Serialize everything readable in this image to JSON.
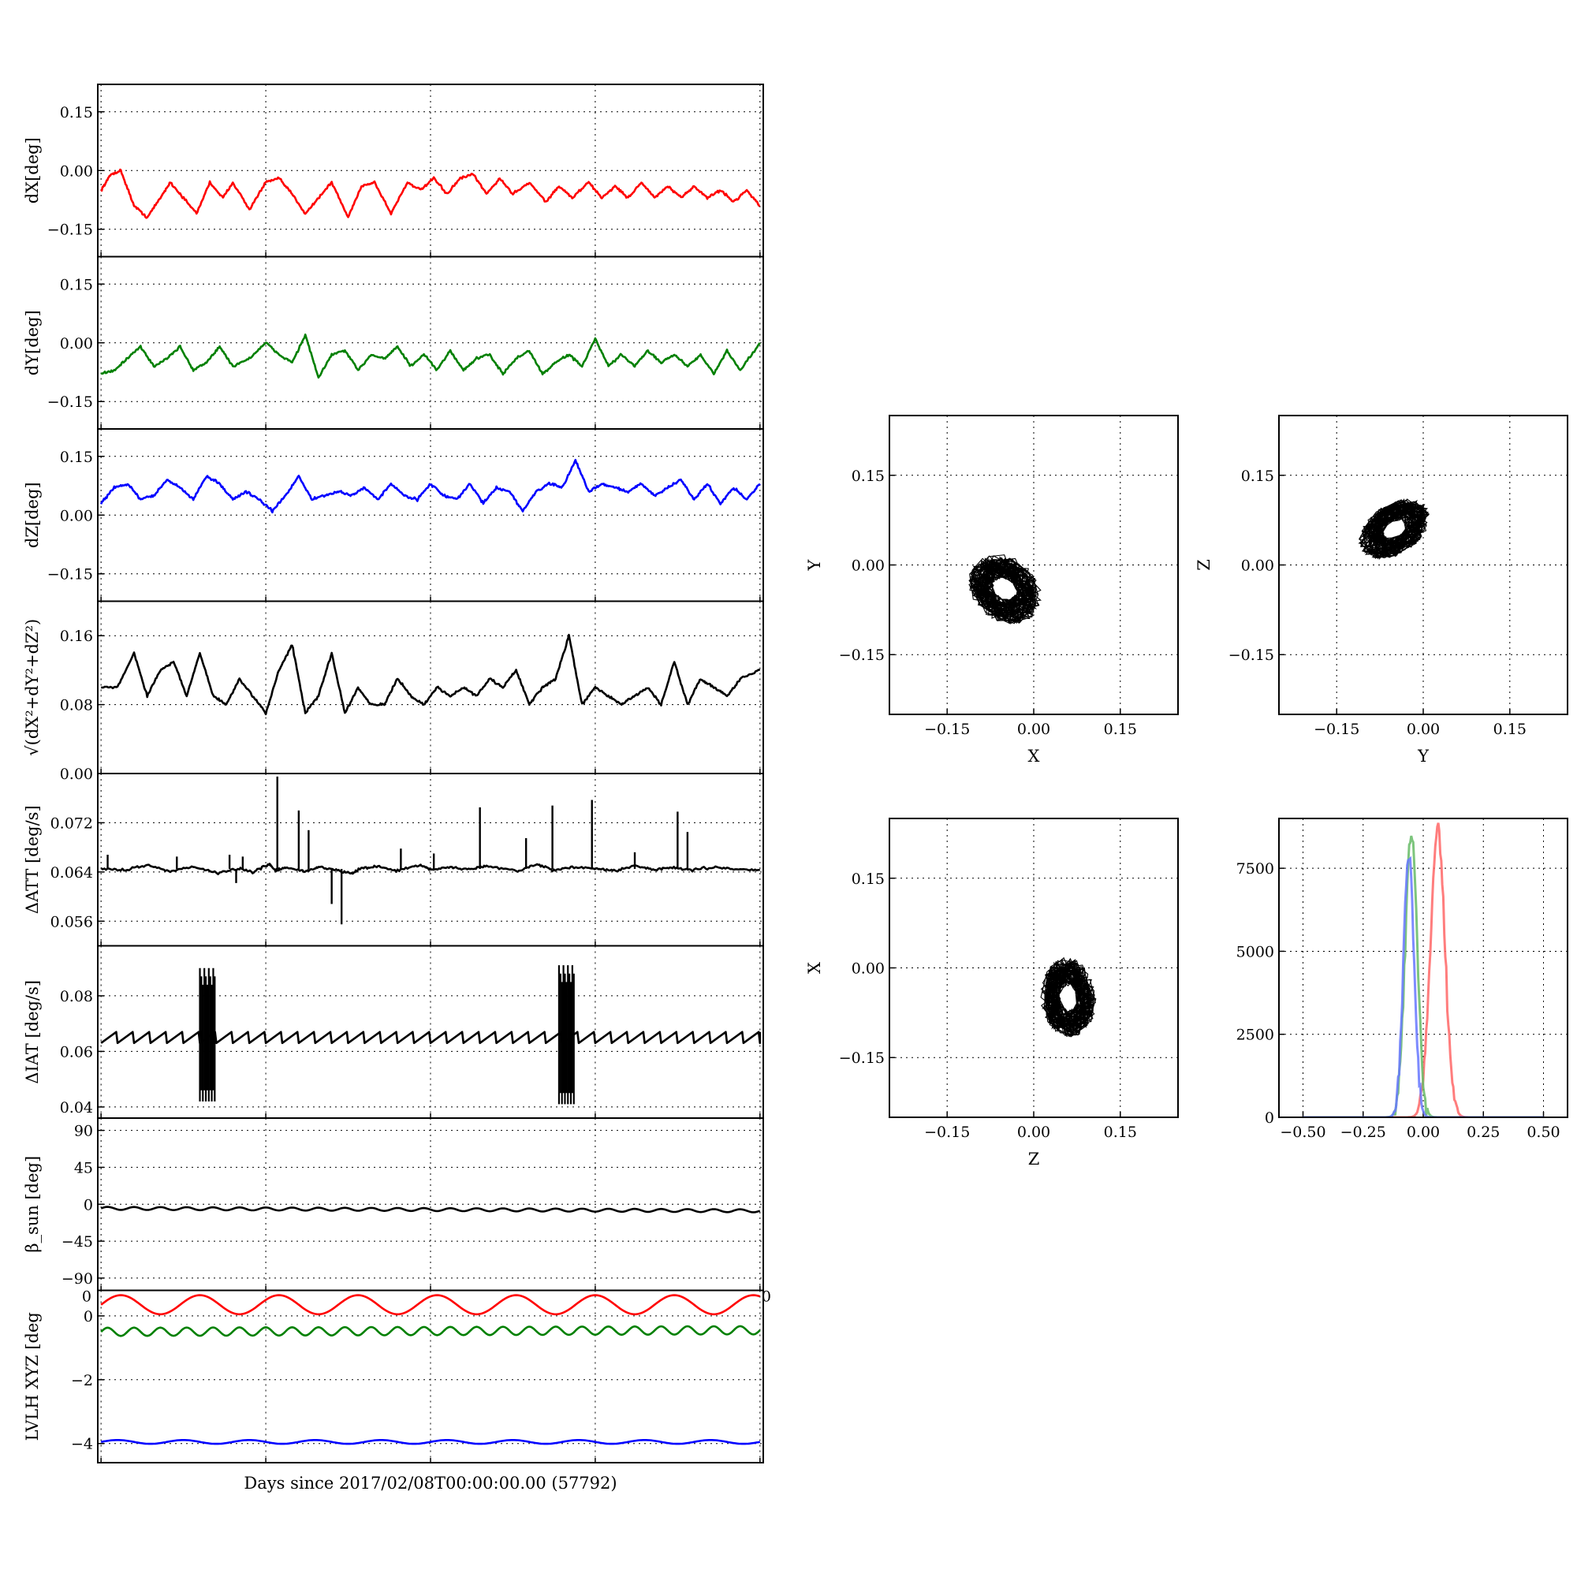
{
  "figure": {
    "xlabel": "Days since 2017/02/08T00:00:00.00 (57792)"
  },
  "chart_data": [
    {
      "type": "line",
      "ylabel": "dX[deg]",
      "yticks": [
        0.15,
        0.0,
        -0.15
      ],
      "ytick_labels": [
        "0.15",
        "0.00",
        "−0.15"
      ],
      "ylim": [
        -0.22,
        0.22
      ],
      "grid": true,
      "series": [
        {
          "color": "#ff0000",
          "x": [
            0,
            0.3,
            0.6,
            1.0,
            1.4,
            1.8,
            2.1,
            2.4,
            2.9,
            3.3,
            3.7,
            4.0,
            4.5,
            5.0,
            5.4,
            5.8,
            6.2,
            6.6,
            7.0,
            7.5,
            7.9,
            8.3,
            8.8,
            9.3,
            9.7,
            10.1,
            10.5,
            10.9,
            11.3,
            11.7,
            12.1,
            12.5,
            13.0,
            13.5,
            13.9,
            14.3,
            14.8,
            15.2,
            15.6,
            16.0,
            16.4,
            16.8,
            17.2,
            17.6,
            18.0,
            18.4,
            18.8,
            19.2,
            19.6,
            20.0
          ],
          "values": [
            -0.05,
            -0.01,
            0.0,
            -0.09,
            -0.12,
            -0.07,
            -0.03,
            -0.06,
            -0.11,
            -0.03,
            -0.07,
            -0.03,
            -0.1,
            -0.03,
            -0.02,
            -0.06,
            -0.11,
            -0.07,
            -0.03,
            -0.12,
            -0.04,
            -0.03,
            -0.11,
            -0.03,
            -0.05,
            -0.02,
            -0.06,
            -0.02,
            -0.01,
            -0.06,
            -0.02,
            -0.06,
            -0.03,
            -0.08,
            -0.04,
            -0.07,
            -0.03,
            -0.07,
            -0.04,
            -0.07,
            -0.03,
            -0.07,
            -0.04,
            -0.07,
            -0.04,
            -0.07,
            -0.05,
            -0.08,
            -0.05,
            -0.09
          ]
        }
      ]
    },
    {
      "type": "line",
      "ylabel": "dY[deg]",
      "yticks": [
        0.15,
        0.0,
        -0.15
      ],
      "ytick_labels": [
        "0.15",
        "0.00",
        "−0.15"
      ],
      "ylim": [
        -0.22,
        0.22
      ],
      "grid": true,
      "series": [
        {
          "color": "#008000",
          "x": [
            0,
            0.4,
            0.8,
            1.2,
            1.6,
            2.0,
            2.4,
            2.8,
            3.2,
            3.6,
            4.0,
            4.5,
            5.0,
            5.4,
            5.8,
            6.2,
            6.6,
            7.0,
            7.4,
            7.8,
            8.2,
            8.6,
            9.0,
            9.4,
            9.8,
            10.2,
            10.6,
            11.0,
            11.4,
            11.8,
            12.2,
            12.6,
            13.0,
            13.4,
            13.8,
            14.2,
            14.6,
            15.0,
            15.4,
            15.8,
            16.2,
            16.6,
            17.0,
            17.4,
            17.8,
            18.2,
            18.6,
            19.0,
            19.4,
            20.0
          ],
          "values": [
            -0.08,
            -0.07,
            -0.04,
            -0.01,
            -0.06,
            -0.04,
            -0.01,
            -0.07,
            -0.05,
            -0.01,
            -0.06,
            -0.04,
            0.0,
            -0.03,
            -0.05,
            0.02,
            -0.09,
            -0.03,
            -0.02,
            -0.07,
            -0.03,
            -0.04,
            -0.01,
            -0.06,
            -0.03,
            -0.07,
            -0.02,
            -0.07,
            -0.04,
            -0.03,
            -0.08,
            -0.04,
            -0.02,
            -0.08,
            -0.05,
            -0.03,
            -0.06,
            0.01,
            -0.06,
            -0.03,
            -0.06,
            -0.02,
            -0.05,
            -0.03,
            -0.06,
            -0.03,
            -0.08,
            -0.02,
            -0.07,
            0.0
          ]
        }
      ]
    },
    {
      "type": "line",
      "ylabel": "dZ[deg]",
      "yticks": [
        0.15,
        0.0,
        -0.15
      ],
      "ytick_labels": [
        "0.15",
        "0.00",
        "−0.15"
      ],
      "ylim": [
        -0.22,
        0.22
      ],
      "grid": true,
      "series": [
        {
          "color": "#0000ff",
          "x": [
            0,
            0.4,
            0.8,
            1.2,
            1.6,
            2.0,
            2.4,
            2.8,
            3.2,
            3.6,
            4.0,
            4.4,
            4.8,
            5.2,
            5.6,
            6.0,
            6.4,
            6.8,
            7.2,
            7.6,
            8.0,
            8.4,
            8.8,
            9.2,
            9.6,
            10.0,
            10.4,
            10.8,
            11.2,
            11.6,
            12.0,
            12.4,
            12.8,
            13.2,
            13.6,
            14.0,
            14.4,
            14.8,
            15.2,
            15.6,
            16.0,
            16.4,
            16.8,
            17.2,
            17.6,
            18.0,
            18.4,
            18.8,
            19.2,
            19.6,
            20.0
          ],
          "values": [
            0.03,
            0.07,
            0.08,
            0.04,
            0.05,
            0.09,
            0.07,
            0.04,
            0.1,
            0.08,
            0.04,
            0.06,
            0.04,
            0.01,
            0.05,
            0.1,
            0.04,
            0.05,
            0.06,
            0.05,
            0.07,
            0.04,
            0.08,
            0.05,
            0.04,
            0.08,
            0.05,
            0.04,
            0.08,
            0.03,
            0.07,
            0.06,
            0.01,
            0.06,
            0.08,
            0.07,
            0.14,
            0.06,
            0.08,
            0.07,
            0.06,
            0.08,
            0.05,
            0.07,
            0.09,
            0.04,
            0.08,
            0.03,
            0.07,
            0.04,
            0.08
          ]
        }
      ]
    },
    {
      "type": "line",
      "ylabel": "√(dX²+dY²+dZ²)",
      "yticks": [
        0.16,
        0.08,
        0.0
      ],
      "ytick_labels": [
        "0.16",
        "0.08",
        "0.00"
      ],
      "ylim": [
        0.0,
        0.2
      ],
      "grid": true,
      "series": [
        {
          "color": "#000000",
          "x": [
            0,
            0.5,
            1.0,
            1.4,
            1.8,
            2.2,
            2.6,
            3.0,
            3.4,
            3.8,
            4.2,
            4.6,
            5.0,
            5.4,
            5.8,
            6.2,
            6.6,
            7.0,
            7.4,
            7.8,
            8.2,
            8.6,
            9.0,
            9.4,
            9.8,
            10.2,
            10.6,
            11.0,
            11.4,
            11.8,
            12.2,
            12.6,
            13.0,
            13.4,
            13.8,
            14.2,
            14.6,
            15.0,
            15.4,
            15.8,
            16.2,
            16.6,
            17.0,
            17.4,
            17.8,
            18.2,
            18.6,
            19.0,
            19.4,
            20.0
          ],
          "values": [
            0.1,
            0.1,
            0.14,
            0.09,
            0.12,
            0.13,
            0.09,
            0.14,
            0.09,
            0.08,
            0.11,
            0.09,
            0.07,
            0.12,
            0.15,
            0.07,
            0.09,
            0.14,
            0.07,
            0.1,
            0.08,
            0.08,
            0.11,
            0.09,
            0.08,
            0.1,
            0.09,
            0.1,
            0.09,
            0.11,
            0.1,
            0.12,
            0.08,
            0.1,
            0.11,
            0.16,
            0.08,
            0.1,
            0.09,
            0.08,
            0.09,
            0.1,
            0.08,
            0.13,
            0.08,
            0.11,
            0.1,
            0.09,
            0.11,
            0.12
          ]
        }
      ]
    },
    {
      "type": "line",
      "ylabel": "ΔATT [deg/s]",
      "yticks": [
        0.072,
        0.064,
        0.056
      ],
      "ytick_labels": [
        "0.072",
        "0.064",
        "0.056"
      ],
      "ylim": [
        0.052,
        0.08
      ],
      "grid": true,
      "series": [
        {
          "color": "#000000",
          "x": [
            0,
            0.7,
            1.4,
            2.1,
            2.8,
            3.5,
            4.2,
            4.6,
            5.1,
            5.3,
            5.6,
            6.2,
            6.6,
            7.1,
            7.6,
            7.9,
            8.4,
            9.0,
            9.7,
            10.0,
            10.6,
            11.2,
            11.7,
            12.6,
            13.2,
            13.7,
            14.3,
            15.1,
            15.6,
            16.2,
            16.8,
            17.3,
            17.9,
            18.6,
            19.3,
            20.0
          ],
          "values": [
            0.0645,
            0.0643,
            0.0652,
            0.0641,
            0.0649,
            0.0638,
            0.0646,
            0.0639,
            0.0653,
            0.0642,
            0.0647,
            0.0641,
            0.0648,
            0.0643,
            0.0638,
            0.0646,
            0.0649,
            0.0642,
            0.0651,
            0.0644,
            0.0647,
            0.0645,
            0.0649,
            0.0641,
            0.0652,
            0.0643,
            0.0648,
            0.0645,
            0.0642,
            0.065,
            0.0644,
            0.0647,
            0.0643,
            0.0648,
            0.0644,
            0.0643
          ]
        }
      ],
      "spikes": [
        {
          "x": 0.2,
          "y": 0.0668
        },
        {
          "x": 2.3,
          "y": 0.0665
        },
        {
          "x": 3.9,
          "y": 0.0668
        },
        {
          "x": 4.1,
          "y": 0.0622
        },
        {
          "x": 4.3,
          "y": 0.0665
        },
        {
          "x": 5.35,
          "y": 0.0795
        },
        {
          "x": 6.0,
          "y": 0.074
        },
        {
          "x": 6.3,
          "y": 0.0708
        },
        {
          "x": 7.0,
          "y": 0.0588
        },
        {
          "x": 7.3,
          "y": 0.0555
        },
        {
          "x": 9.1,
          "y": 0.0678
        },
        {
          "x": 10.1,
          "y": 0.067
        },
        {
          "x": 11.5,
          "y": 0.0745
        },
        {
          "x": 12.9,
          "y": 0.0695
        },
        {
          "x": 13.7,
          "y": 0.0748
        },
        {
          "x": 14.9,
          "y": 0.0757
        },
        {
          "x": 16.2,
          "y": 0.0672
        },
        {
          "x": 17.5,
          "y": 0.0738
        },
        {
          "x": 17.8,
          "y": 0.0705
        }
      ]
    },
    {
      "type": "line",
      "ylabel": "ΔIAT [deg/s]",
      "yticks": [
        0.08,
        0.06,
        0.04
      ],
      "ytick_labels": [
        "0.08",
        "0.06",
        "0.04"
      ],
      "ylim": [
        0.036,
        0.098
      ],
      "grid": true,
      "series": [
        {
          "color": "#000000",
          "sawtooth": {
            "x_start": 0,
            "x_end": 20,
            "period": 0.5,
            "low": 0.063,
            "high": 0.067
          }
        }
      ],
      "bursts": [
        {
          "x_start": 3.0,
          "x_end": 3.45,
          "low": 0.042,
          "high": 0.09
        },
        {
          "x_start": 13.9,
          "x_end": 14.35,
          "low": 0.041,
          "high": 0.091
        }
      ]
    },
    {
      "type": "line",
      "ylabel": "β_sun [deg]",
      "yticks": [
        90,
        45,
        0,
        -45,
        -90
      ],
      "ytick_labels": [
        "90",
        "45",
        "0",
        "−45",
        "−90"
      ],
      "ylim": [
        -105,
        105
      ],
      "grid": true,
      "series": [
        {
          "color": "#000000",
          "wave": {
            "x_start": 0,
            "x_end": 20,
            "mean_start": -5,
            "mean_end": -8,
            "amplitude": 1.8,
            "period": 0.8
          }
        }
      ]
    },
    {
      "type": "line",
      "ylabel": "LVLH XYZ [deg",
      "yticks": [
        0,
        -2,
        -4
      ],
      "ytick_labels": [
        "0",
        "−2",
        "−4"
      ],
      "ylim": [
        -4.6,
        0.8
      ],
      "grid": true,
      "corner_labels": [
        "0",
        "0"
      ],
      "series": [
        {
          "color": "#ff0000",
          "wave": {
            "x_start": 0,
            "x_end": 20,
            "mean_start": 0.35,
            "mean_end": 0.35,
            "amplitude": 0.3,
            "period": 2.4
          }
        },
        {
          "color": "#008000",
          "wave": {
            "x_start": 0,
            "x_end": 20,
            "mean_start": -0.5,
            "mean_end": -0.45,
            "amplitude": 0.13,
            "period": 0.8
          }
        },
        {
          "color": "#0000ff",
          "wave": {
            "x_start": 0,
            "x_end": 20,
            "mean_start": -3.95,
            "mean_end": -3.95,
            "amplitude": 0.06,
            "period": 2.0
          }
        }
      ]
    },
    {
      "type": "scatter",
      "xlabel": "X",
      "ylabel": "Y",
      "xticks": [
        -0.15,
        0.0,
        0.15
      ],
      "xtick_labels": [
        "−0.15",
        "0.00",
        "0.15"
      ],
      "yticks": [
        0.15,
        0.0,
        -0.15
      ],
      "ytick_labels": [
        "0.15",
        "0.00",
        "−0.15"
      ],
      "xlim": [
        -0.25,
        0.25
      ],
      "ylim": [
        -0.25,
        0.25
      ],
      "grid": true,
      "cloud": {
        "center": [
          -0.05,
          -0.04
        ],
        "spread": [
          0.035,
          0.028
        ],
        "tilt": -0.6
      }
    },
    {
      "type": "scatter",
      "xlabel": "Y",
      "ylabel": "Z",
      "xticks": [
        -0.15,
        0.0,
        0.15
      ],
      "xtick_labels": [
        "−0.15",
        "0.00",
        "0.15"
      ],
      "yticks": [
        0.15,
        0.0,
        -0.15
      ],
      "ytick_labels": [
        "0.15",
        "0.00",
        "−0.15"
      ],
      "xlim": [
        -0.25,
        0.25
      ],
      "ylim": [
        -0.25,
        0.25
      ],
      "grid": true,
      "cloud": {
        "center": [
          -0.05,
          0.06
        ],
        "spread": [
          0.035,
          0.022
        ],
        "tilt": 0.55
      }
    },
    {
      "type": "scatter",
      "xlabel": "Z",
      "ylabel": "X",
      "xticks": [
        -0.15,
        0.0,
        0.15
      ],
      "xtick_labels": [
        "−0.15",
        "0.00",
        "0.15"
      ],
      "yticks": [
        0.15,
        0.0,
        -0.15
      ],
      "ytick_labels": [
        "0.15",
        "0.00",
        "−0.15"
      ],
      "xlim": [
        -0.25,
        0.25
      ],
      "ylim": [
        -0.25,
        0.25
      ],
      "grid": true,
      "cloud": {
        "center": [
          0.06,
          -0.05
        ],
        "spread": [
          0.025,
          0.035
        ],
        "tilt": 0.1
      }
    },
    {
      "type": "area",
      "xticks": [
        -0.5,
        -0.25,
        0.0,
        0.25,
        0.5
      ],
      "xtick_labels": [
        "−0.50",
        "−0.25",
        "0.00",
        "0.25",
        "0.50"
      ],
      "yticks": [
        7500,
        5000,
        2500,
        0
      ],
      "ytick_labels": [
        "7500",
        "5000",
        "2500",
        "0"
      ],
      "xlim": [
        -0.6,
        0.6
      ],
      "ylim": [
        0,
        9000
      ],
      "grid": true,
      "series": [
        {
          "color": "#ff6666",
          "center": 0.06,
          "width": 0.03,
          "peak": 8600
        },
        {
          "color": "#66bb66",
          "center": -0.05,
          "width": 0.025,
          "peak": 8600
        },
        {
          "color": "#6677ff",
          "center": -0.06,
          "width": 0.022,
          "peak": 7800
        }
      ]
    }
  ]
}
